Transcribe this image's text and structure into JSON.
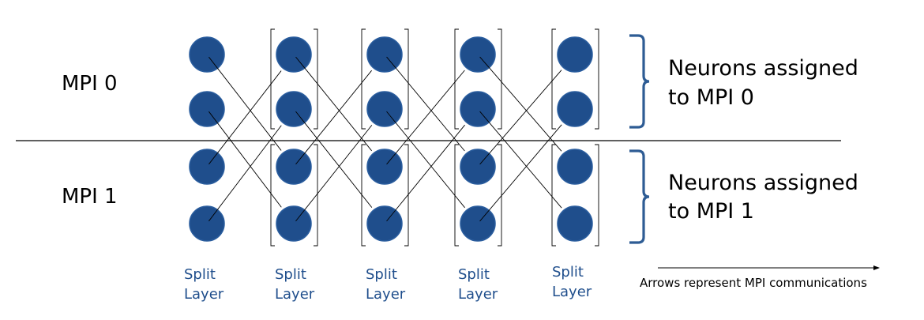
{
  "colors": {
    "neuron_fill": "#1f4e8c",
    "neuron_stroke": "#2a5d9e",
    "layer_label": "#1f4e8c",
    "brace": "#2e5c94",
    "line": "#000000"
  },
  "processes": [
    {
      "label": "MPI 0",
      "assignment_lines": [
        "Neurons assigned",
        "to MPI 0"
      ]
    },
    {
      "label": "MPI 1",
      "assignment_lines": [
        "Neurons assigned",
        "to MPI 1"
      ]
    }
  ],
  "layers": [
    {
      "label_lines": [
        "Split",
        "Layer"
      ]
    },
    {
      "label_lines": [
        "Split",
        "Layer"
      ]
    },
    {
      "label_lines": [
        "Split",
        "Layer"
      ]
    },
    {
      "label_lines": [
        "Split",
        "Layer"
      ]
    },
    {
      "label_lines": [
        "Split",
        "Layer"
      ]
    }
  ],
  "neurons_per_layer": 4,
  "connections": [
    {
      "from": [
        0,
        0
      ],
      "to": [
        1,
        2
      ]
    },
    {
      "from": [
        0,
        1
      ],
      "to": [
        1,
        3
      ]
    },
    {
      "from": [
        0,
        2
      ],
      "to": [
        1,
        0
      ]
    },
    {
      "from": [
        0,
        3
      ],
      "to": [
        1,
        1
      ]
    },
    {
      "from": [
        1,
        0
      ],
      "to": [
        2,
        2
      ]
    },
    {
      "from": [
        1,
        1
      ],
      "to": [
        2,
        3
      ]
    },
    {
      "from": [
        1,
        2
      ],
      "to": [
        2,
        0
      ]
    },
    {
      "from": [
        1,
        3
      ],
      "to": [
        2,
        1
      ]
    },
    {
      "from": [
        2,
        0
      ],
      "to": [
        3,
        2
      ]
    },
    {
      "from": [
        2,
        1
      ],
      "to": [
        3,
        3
      ]
    },
    {
      "from": [
        2,
        2
      ],
      "to": [
        3,
        0
      ]
    },
    {
      "from": [
        2,
        3
      ],
      "to": [
        3,
        1
      ]
    },
    {
      "from": [
        3,
        0
      ],
      "to": [
        4,
        2
      ]
    },
    {
      "from": [
        3,
        1
      ],
      "to": [
        4,
        3
      ]
    },
    {
      "from": [
        3,
        2
      ],
      "to": [
        4,
        0
      ]
    },
    {
      "from": [
        3,
        3
      ],
      "to": [
        4,
        1
      ]
    }
  ],
  "legend": {
    "text": "Arrows represent MPI communications"
  }
}
